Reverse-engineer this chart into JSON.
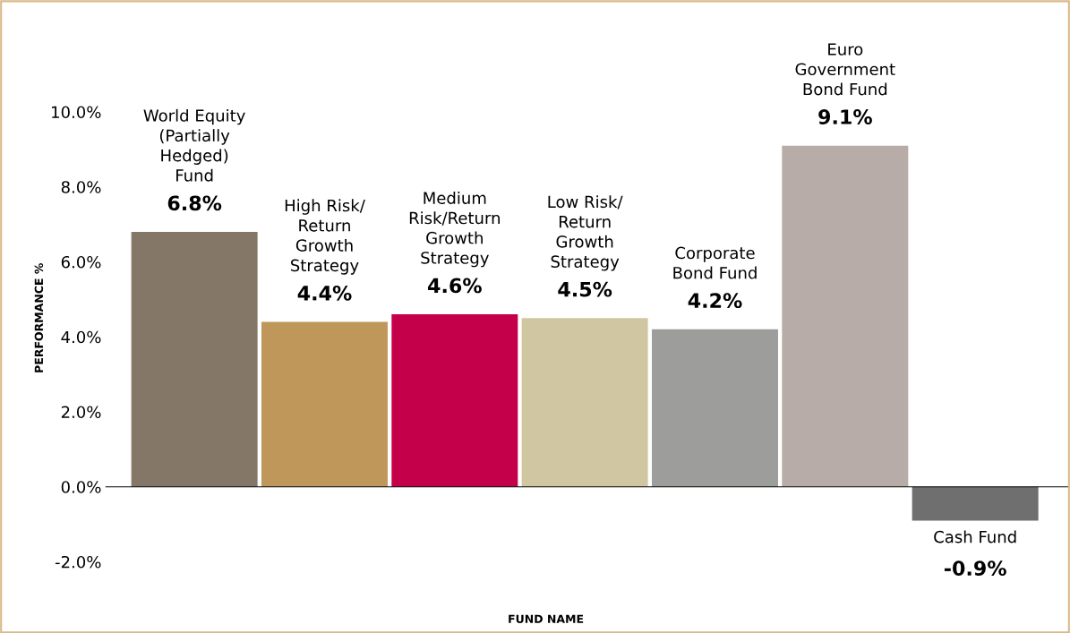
{
  "chart_data": {
    "type": "bar",
    "xlabel": "FUND NAME",
    "ylabel": "PERFORMANCE %",
    "categories": [
      "World Equity\n(Partially\nHedged)\nFund",
      "High Risk/\nReturn\nGrowth\nStrategy",
      "Medium\nRisk/Return\nGrowth\nStrategy",
      "Low Risk/\nReturn\nGrowth\nStrategy",
      "Corporate\nBond Fund",
      "Euro\nGovernment\nBond Fund",
      "Cash Fund"
    ],
    "values": [
      6.8,
      4.4,
      4.6,
      4.5,
      4.2,
      9.1,
      -0.9
    ],
    "value_labels": [
      "6.8%",
      "4.4%",
      "4.6%",
      "4.5%",
      "4.2%",
      "9.1%",
      "-0.9%"
    ],
    "colors": [
      "#857768",
      "#bf975b",
      "#c4004a",
      "#d0c7a2",
      "#9d9d9b",
      "#b7aca7",
      "#6f6f6f"
    ],
    "ylim": [
      -3.9,
      12.9
    ],
    "yticks": [
      {
        "value": -2,
        "label": "-2.0%"
      },
      {
        "value": 0,
        "label": "0.0%"
      },
      {
        "value": 2,
        "label": "2.0%"
      },
      {
        "value": 4,
        "label": "4.0%"
      },
      {
        "value": 6,
        "label": "6.0%"
      },
      {
        "value": 8,
        "label": "8.0%"
      },
      {
        "value": 10,
        "label": "10.0%"
      }
    ],
    "tick_labels": "y",
    "legend": false
  }
}
